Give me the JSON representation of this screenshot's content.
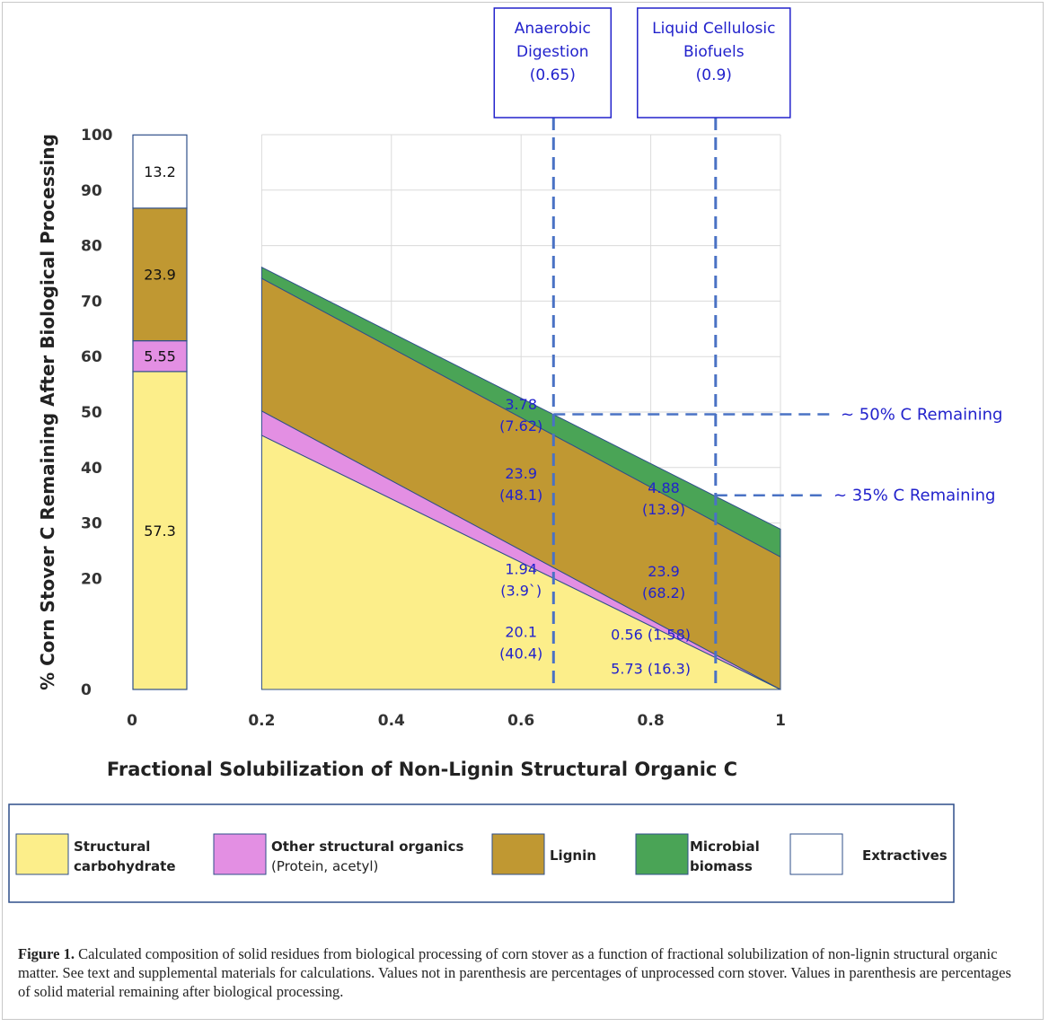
{
  "colors": {
    "structural_carbohydrate": "#fcee8a",
    "other_structural": "#e38fe3",
    "lignin": "#c09832",
    "microbial": "#4aa456",
    "extractives": "#ffffff",
    "outline": "#2f4f8a",
    "annotation": "#2222cc",
    "guide": "#4a72c4"
  },
  "caption": {
    "label": "Figure 1.",
    "text": "Calculated composition of solid residues from biological processing of corn stover as a function of fractional solubilization of non-lignin structural organic matter. See text and supplemental materials for calculations. Values not in parenthesis are percentages of unprocessed corn stover. Values in parenthesis are percentages of solid material remaining after biological processing."
  },
  "chart_data": {
    "type": "area",
    "ylabel": "% Corn Stover C Remaining After Biological Processing",
    "xlabel": "Fractional Solubilization of Non-Lignin Structural Organic C",
    "ylim": [
      0,
      100
    ],
    "y_ticks": [
      "0",
      "20",
      "30",
      "40",
      "50",
      "60",
      "70",
      "80",
      "90",
      "100"
    ],
    "x_ticks": [
      "0",
      "0.2",
      "0.4",
      "0.6",
      "0.8",
      "1"
    ],
    "grid": true,
    "initial_bar": {
      "x": 0,
      "segments": [
        {
          "name": "Structural carbohydrate",
          "value": 57.3,
          "label": "57.3"
        },
        {
          "name": "Other structural organics",
          "value": 5.55,
          "label": "5.55"
        },
        {
          "name": "Lignin",
          "value": 23.9,
          "label": "23.9"
        },
        {
          "name": "Extractives",
          "value": 13.2,
          "label": "13.2"
        }
      ]
    },
    "x": [
      0.2,
      1.0
    ],
    "series": [
      {
        "name": "Structural carbohydrate",
        "values": [
          45.8,
          0
        ]
      },
      {
        "name": "Other structural organics",
        "values": [
          4.4,
          0
        ]
      },
      {
        "name": "Lignin",
        "values": [
          23.9,
          23.9
        ]
      },
      {
        "name": "Microbial biomass",
        "values": [
          2.0,
          5.0
        ]
      }
    ],
    "process_lines": [
      {
        "x": 0.65,
        "label_lines": [
          "Anaerobic",
          "Digestion",
          "(0.65)"
        ]
      },
      {
        "x": 0.9,
        "label_lines": [
          "Liquid Cellulosic",
          "Biofuels",
          "(0.9)"
        ]
      }
    ],
    "remaining_lines": [
      {
        "x": 0.65,
        "y": 49.6,
        "label": "~ 50% C Remaining"
      },
      {
        "x": 0.9,
        "y": 35.0,
        "label": "~ 35% C Remaining"
      }
    ],
    "annotations": [
      {
        "x": 0.6,
        "y": 50.5,
        "lines": [
          "3.78",
          "(7.62)"
        ]
      },
      {
        "x": 0.6,
        "y": 38.0,
        "lines": [
          "23.9",
          "(48.1)"
        ]
      },
      {
        "x": 0.6,
        "y": 20.8,
        "lines": [
          "1.94",
          "(3.9`)"
        ]
      },
      {
        "x": 0.6,
        "y": 9.5,
        "lines": [
          "20.1",
          "(40.4)"
        ]
      },
      {
        "x": 0.82,
        "y": 35.4,
        "lines": [
          "4.88",
          "(13.9)"
        ]
      },
      {
        "x": 0.82,
        "y": 20.4,
        "lines": [
          "23.9",
          "(68.2)"
        ]
      },
      {
        "x": 0.8,
        "y": 9.0,
        "lines": [
          "0.56 (1.58)"
        ]
      },
      {
        "x": 0.8,
        "y": 2.8,
        "lines": [
          "5.73 (16.3)"
        ]
      }
    ],
    "legend": {
      "placement": "bottom",
      "items": [
        {
          "key": "structural_carbohydrate",
          "lines": [
            "Structural",
            "carbohydrate"
          ],
          "bold": true
        },
        {
          "key": "other_structural",
          "lines": [
            "Other structural organics",
            "(Protein, acetyl)"
          ],
          "bold": true
        },
        {
          "key": "lignin",
          "lines": [
            "Lignin"
          ],
          "bold": true
        },
        {
          "key": "microbial",
          "lines": [
            "Microbial",
            "biomass"
          ],
          "bold": true
        },
        {
          "key": "extractives",
          "lines": [
            "Extractives"
          ],
          "bold": true
        }
      ]
    }
  }
}
